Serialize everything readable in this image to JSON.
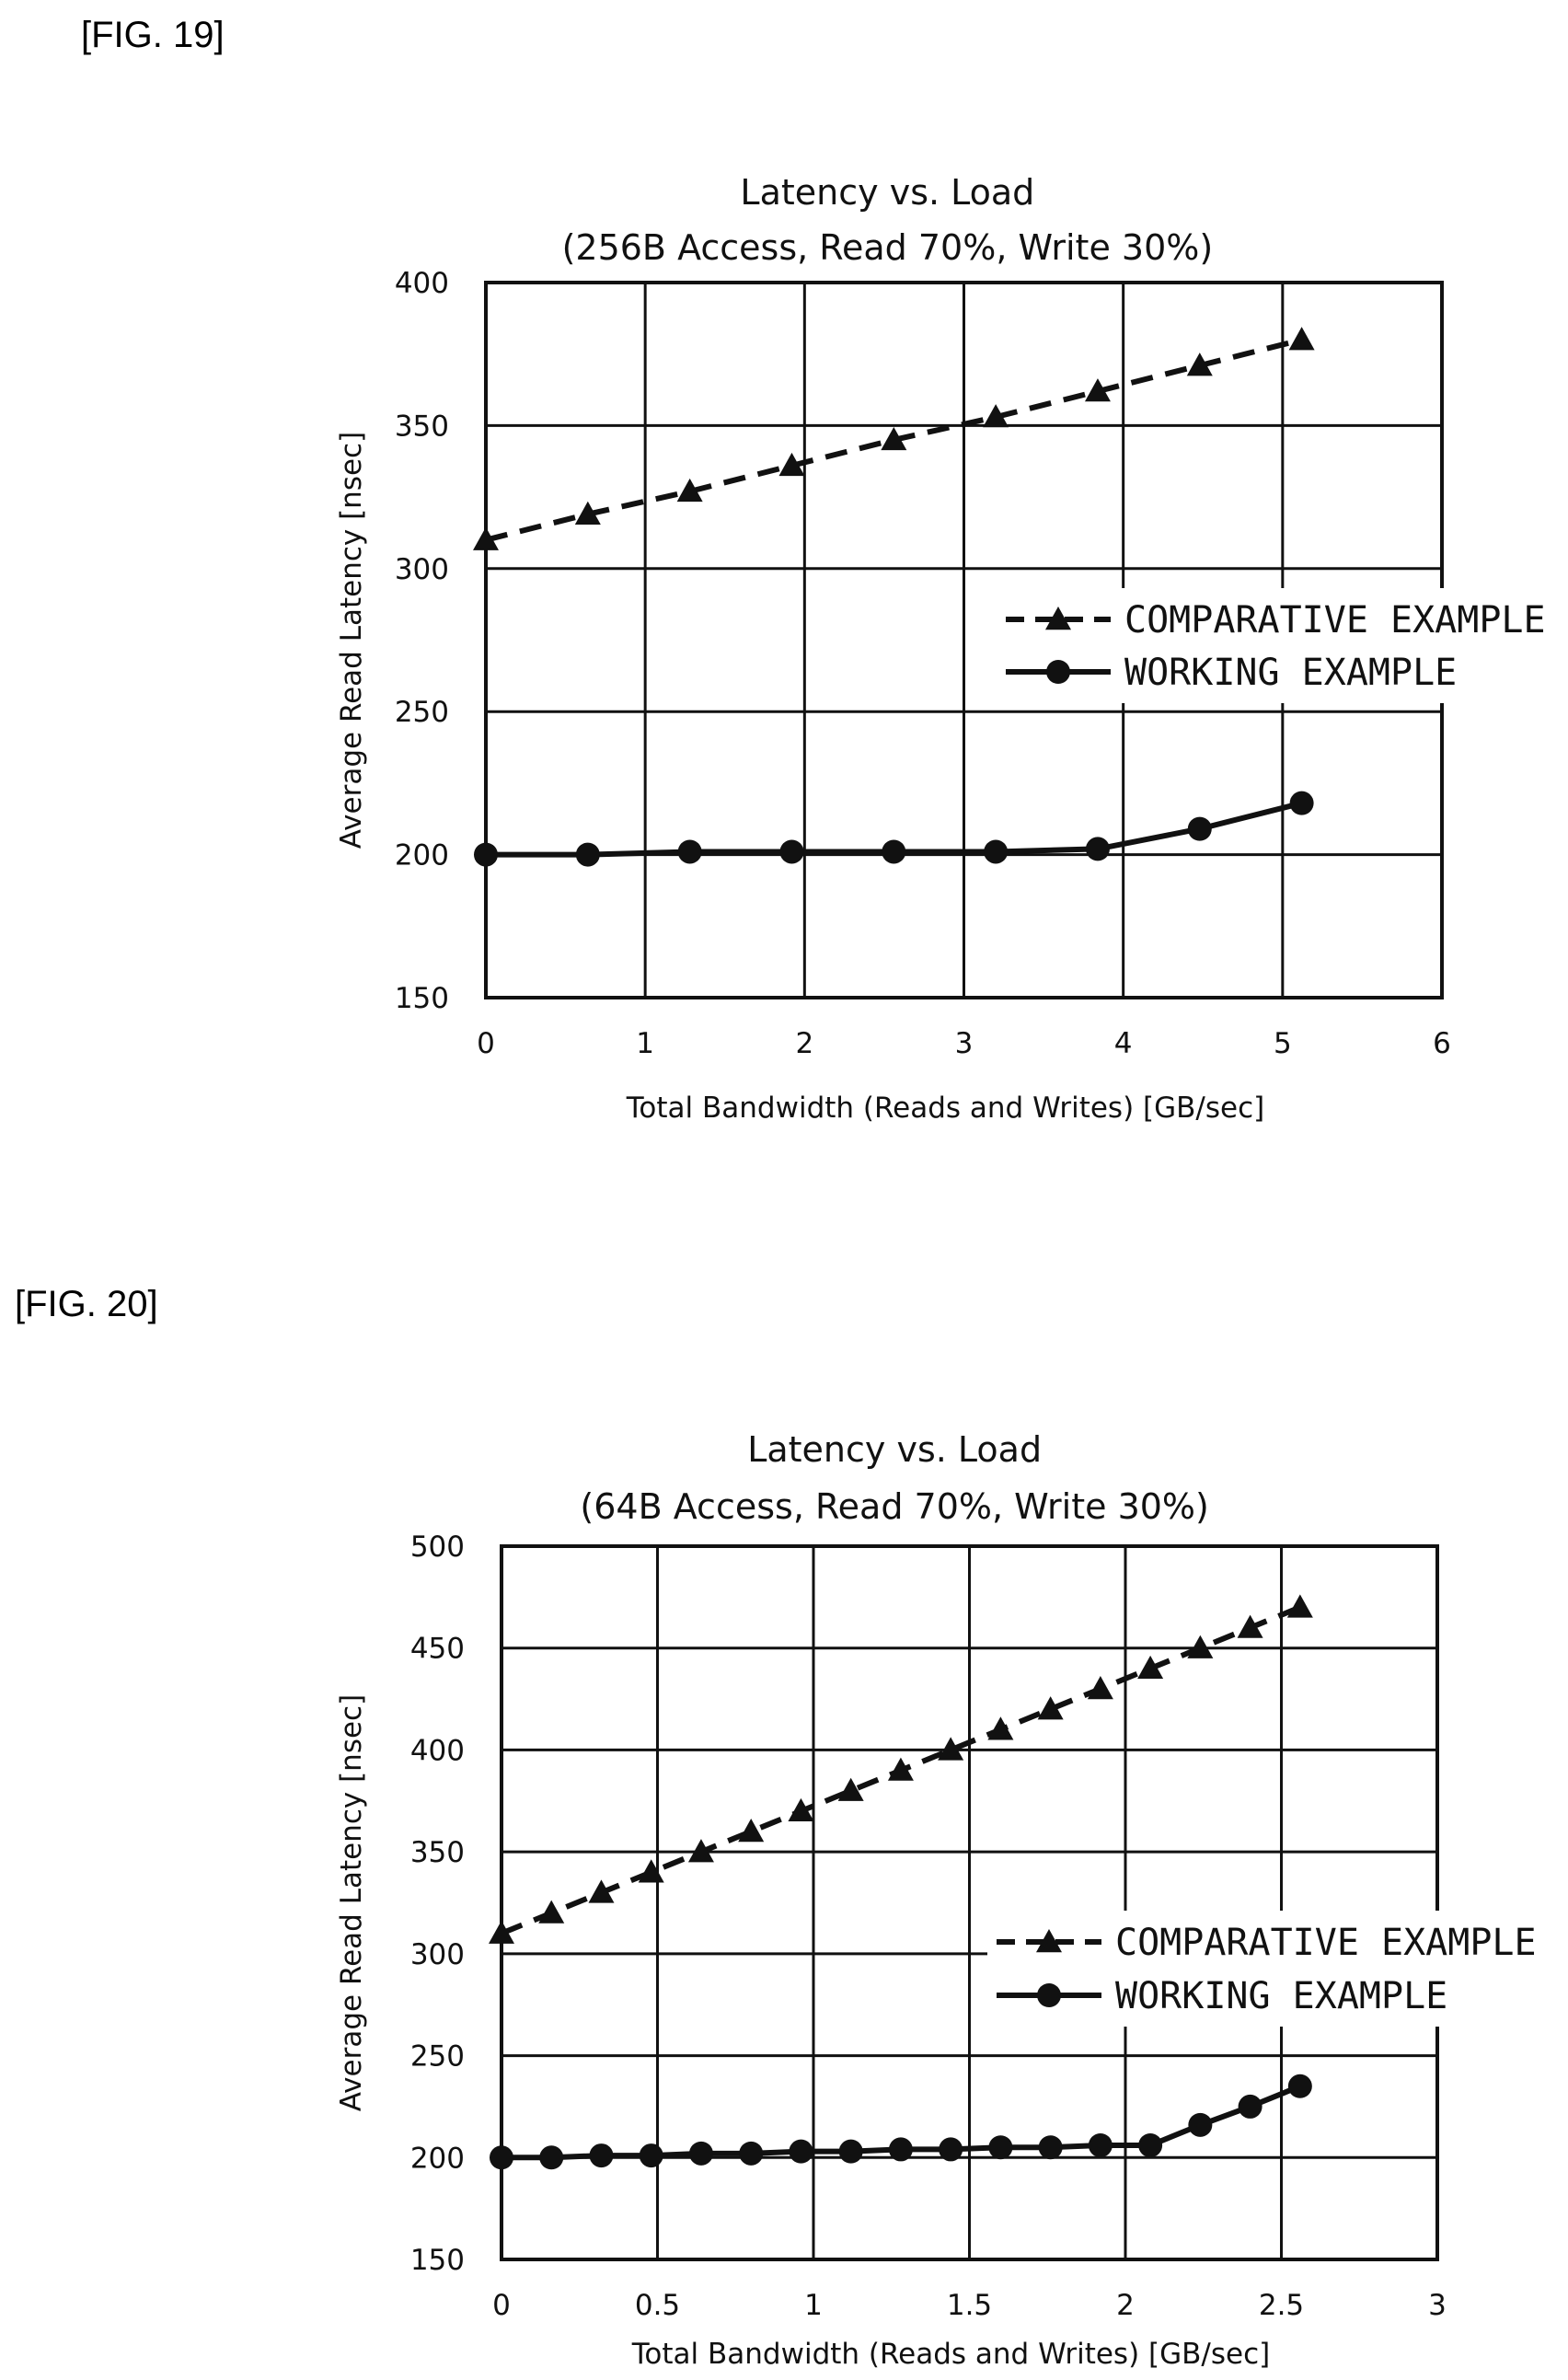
{
  "figures": [
    {
      "label": "[FIG. 19]"
    },
    {
      "label": "[FIG. 20]"
    }
  ],
  "chart_data": [
    {
      "type": "line",
      "title": "Latency vs. Load",
      "subtitle": "(256B Access, Read 70%, Write 30%)",
      "xlabel": "Total Bandwidth (Reads and Writes) [GB/sec]",
      "ylabel": "Average Read Latency [nsec]",
      "xlim": [
        0,
        6
      ],
      "ylim": [
        150,
        400
      ],
      "xticks": [
        0,
        1,
        2,
        3,
        4,
        5,
        6
      ],
      "yticks": [
        150,
        200,
        250,
        300,
        350,
        400
      ],
      "grid": true,
      "legend_position": "right",
      "series": [
        {
          "name": "COMPARATIVE EXAMPLE",
          "marker": "triangle",
          "line": "dashed",
          "x": [
            0,
            0.64,
            1.28,
            1.92,
            2.56,
            3.2,
            3.84,
            4.48,
            5.12
          ],
          "y": [
            310,
            319,
            327,
            336,
            345,
            353,
            362,
            371,
            380
          ]
        },
        {
          "name": "WORKING EXAMPLE",
          "marker": "circle",
          "line": "solid",
          "x": [
            0,
            0.64,
            1.28,
            1.92,
            2.56,
            3.2,
            3.84,
            4.48,
            5.12
          ],
          "y": [
            200,
            200,
            201,
            201,
            201,
            201,
            202,
            209,
            218
          ]
        }
      ]
    },
    {
      "type": "line",
      "title": "Latency vs. Load",
      "subtitle": "(64B Access, Read 70%, Write 30%)",
      "xlabel": "Total Bandwidth (Reads and Writes) [GB/sec]",
      "ylabel": "Average Read Latency [nsec]",
      "xlim": [
        0,
        3
      ],
      "ylim": [
        150,
        500
      ],
      "xticks": [
        0,
        0.5,
        1,
        1.5,
        2,
        2.5,
        3
      ],
      "yticks": [
        150,
        200,
        250,
        300,
        350,
        400,
        450,
        500
      ],
      "grid": true,
      "legend_position": "right",
      "series": [
        {
          "name": "COMPARATIVE EXAMPLE",
          "marker": "triangle",
          "line": "dashed",
          "x": [
            0,
            0.16,
            0.32,
            0.48,
            0.64,
            0.8,
            0.96,
            1.12,
            1.28,
            1.44,
            1.6,
            1.76,
            1.92,
            2.08,
            2.24,
            2.4,
            2.56
          ],
          "y": [
            310,
            320,
            330,
            340,
            350,
            360,
            370,
            380,
            390,
            400,
            410,
            420,
            430,
            440,
            450,
            460,
            470
          ]
        },
        {
          "name": "WORKING EXAMPLE",
          "marker": "circle",
          "line": "solid",
          "x": [
            0,
            0.16,
            0.32,
            0.48,
            0.64,
            0.8,
            0.96,
            1.12,
            1.28,
            1.44,
            1.6,
            1.76,
            1.92,
            2.08,
            2.24,
            2.4,
            2.56
          ],
          "y": [
            200,
            200,
            201,
            201,
            202,
            202,
            203,
            203,
            204,
            204,
            205,
            205,
            206,
            206,
            216,
            225,
            235
          ]
        }
      ]
    }
  ]
}
